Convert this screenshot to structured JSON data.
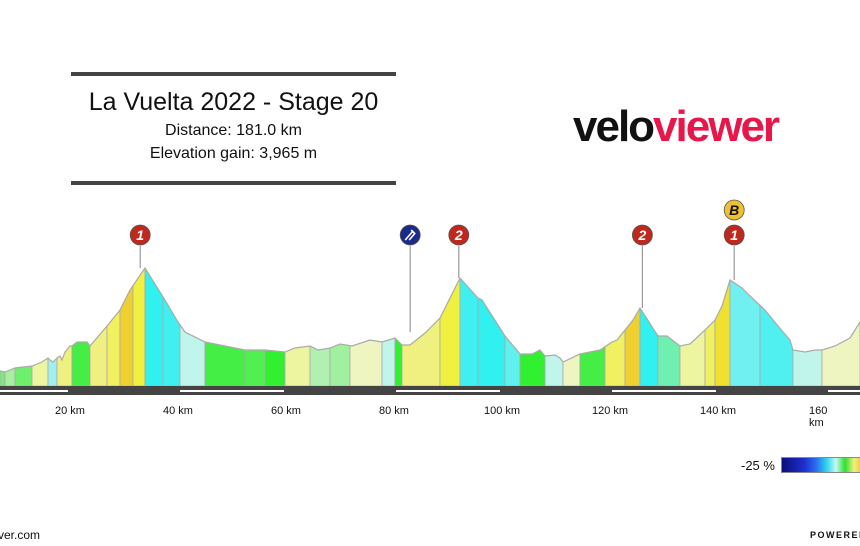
{
  "header": {
    "title": "La Vuelta 2022 - Stage 20",
    "distance": "Distance: 181.0 km",
    "elevation_gain": "Elevation gain: 3,965 m"
  },
  "logo": {
    "part1": "velo",
    "part2": "viewer",
    "colors": {
      "part1": "#111111",
      "part2": "#e8174a"
    }
  },
  "chart_data": {
    "type": "area",
    "title": "La Vuelta 2022 - Stage 20",
    "x_unit": "km",
    "x_ticks": [
      "20 km",
      "40 km",
      "60 km",
      "80 km",
      "100 km",
      "120 km",
      "140 km",
      "160 km"
    ],
    "x_tick_values": [
      20,
      40,
      60,
      80,
      100,
      120,
      140,
      160
    ],
    "color_encoding": "gradient %",
    "markers": [
      {
        "km": 33,
        "type": "climb",
        "category": "1",
        "color": "#c0281e"
      },
      {
        "km": 83,
        "type": "feed-zone",
        "icon": "fork-knife-icon",
        "color": "#1c2a8c"
      },
      {
        "km": 92,
        "type": "climb",
        "category": "2",
        "color": "#c0281e"
      },
      {
        "km": 126,
        "type": "climb",
        "category": "2",
        "color": "#c0281e"
      },
      {
        "km": 143,
        "type": "climb",
        "category": "1",
        "color": "#c0281e"
      },
      {
        "km": 143,
        "type": "bonus",
        "category": "B",
        "color": "#f0c030"
      }
    ]
  },
  "legend": {
    "min_label": "-25 %"
  },
  "footer": {
    "site": "ver.com",
    "powered": "POWERED"
  }
}
